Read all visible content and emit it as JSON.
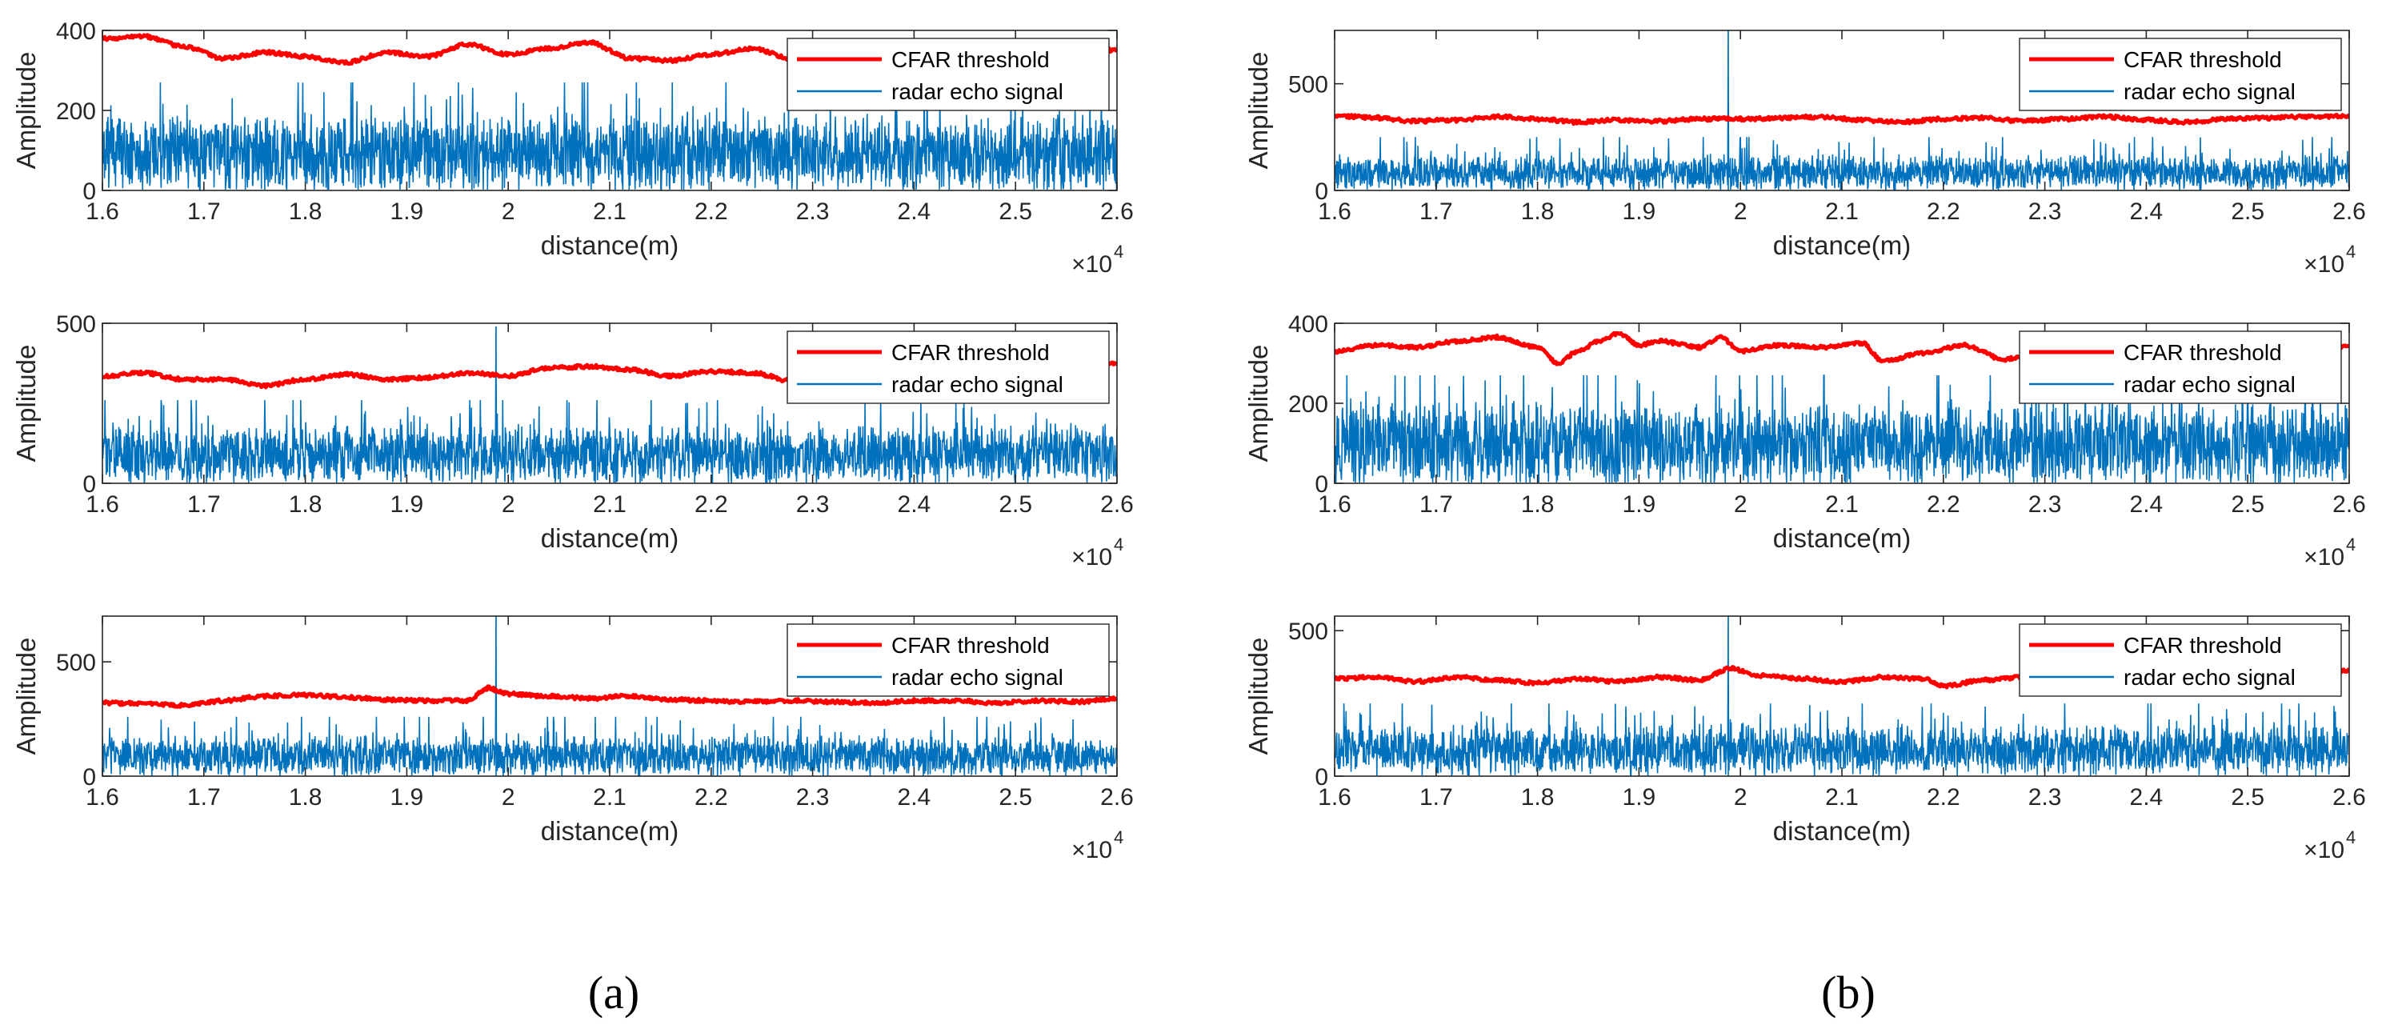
{
  "colors": {
    "threshold": "#ff0000",
    "signal": "#0072bd",
    "axis": "#262626",
    "frame": "#262626"
  },
  "panel_labels": [
    "(a)",
    "(b)"
  ],
  "chart_data": [
    {
      "id": "a1",
      "type": "line",
      "panel": "(a)",
      "row": 1,
      "xlim": [
        1.6,
        2.6
      ],
      "ylim": [
        0,
        400
      ],
      "yticks": [
        0,
        200,
        400
      ],
      "xticks": [
        "1.6",
        "1.7",
        "1.8",
        "1.9",
        "2",
        "2.1",
        "2.2",
        "2.3",
        "2.4",
        "2.5",
        "2.6"
      ],
      "xlabel": "distance(m)",
      "ylabel": "Amplitude",
      "x_exponent_base": "×10",
      "x_exponent": "4",
      "legend": [
        "CFAR threshold",
        "radar echo signal"
      ],
      "legend_loc": "top-right",
      "series": [
        {
          "name": "CFAR threshold",
          "anchors": [
            [
              1.6,
              380
            ],
            [
              1.64,
              385
            ],
            [
              1.68,
              360
            ],
            [
              1.72,
              330
            ],
            [
              1.76,
              345
            ],
            [
              1.8,
              335
            ],
            [
              1.84,
              320
            ],
            [
              1.88,
              345
            ],
            [
              1.92,
              335
            ],
            [
              1.96,
              365
            ],
            [
              2.0,
              340
            ],
            [
              2.04,
              355
            ],
            [
              2.08,
              370
            ],
            [
              2.12,
              330
            ],
            [
              2.16,
              325
            ],
            [
              2.2,
              340
            ],
            [
              2.24,
              355
            ],
            [
              2.28,
              330
            ],
            [
              2.32,
              345
            ],
            [
              2.36,
              360
            ],
            [
              2.4,
              350
            ],
            [
              2.44,
              365
            ],
            [
              2.48,
              355
            ],
            [
              2.52,
              370
            ],
            [
              2.56,
              360
            ],
            [
              2.6,
              350
            ]
          ]
        },
        {
          "name": "radar echo signal",
          "mean": 90,
          "spread": 95,
          "peak_max": 270,
          "spike_x": null,
          "spike_y": null
        }
      ]
    },
    {
      "id": "a2",
      "type": "line",
      "panel": "(a)",
      "row": 2,
      "xlim": [
        1.6,
        2.6
      ],
      "ylim": [
        0,
        500
      ],
      "yticks": [
        0,
        500
      ],
      "xticks": [
        "1.6",
        "1.7",
        "1.8",
        "1.9",
        "2",
        "2.1",
        "2.2",
        "2.3",
        "2.4",
        "2.5",
        "2.6"
      ],
      "xlabel": "distance(m)",
      "ylabel": "Amplitude",
      "x_exponent_base": "×10",
      "x_exponent": "4",
      "legend": [
        "CFAR threshold",
        "radar echo signal"
      ],
      "legend_loc": "top-right",
      "series": [
        {
          "name": "CFAR threshold",
          "anchors": [
            [
              1.6,
              335
            ],
            [
              1.64,
              345
            ],
            [
              1.68,
              325
            ],
            [
              1.72,
              325
            ],
            [
              1.76,
              305
            ],
            [
              1.8,
              325
            ],
            [
              1.84,
              340
            ],
            [
              1.88,
              325
            ],
            [
              1.92,
              330
            ],
            [
              1.96,
              345
            ],
            [
              2.0,
              335
            ],
            [
              2.04,
              360
            ],
            [
              2.08,
              365
            ],
            [
              2.12,
              355
            ],
            [
              2.16,
              335
            ],
            [
              2.2,
              350
            ],
            [
              2.24,
              345
            ],
            [
              2.28,
              320
            ],
            [
              2.32,
              335
            ],
            [
              2.36,
              345
            ],
            [
              2.4,
              330
            ],
            [
              2.44,
              345
            ],
            [
              2.48,
              335
            ],
            [
              2.52,
              330
            ],
            [
              2.56,
              345
            ],
            [
              2.6,
              375
            ]
          ]
        },
        {
          "name": "radar echo signal",
          "mean": 85,
          "spread": 90,
          "peak_max": 260,
          "spike_x": 1.988,
          "spike_y": 490
        }
      ]
    },
    {
      "id": "a3",
      "type": "line",
      "panel": "(a)",
      "row": 3,
      "xlim": [
        1.6,
        2.6
      ],
      "ylim": [
        0,
        700
      ],
      "yticks": [
        0,
        500
      ],
      "xticks": [
        "1.6",
        "1.7",
        "1.8",
        "1.9",
        "2",
        "2.1",
        "2.2",
        "2.3",
        "2.4",
        "2.5",
        "2.6"
      ],
      "xlabel": "distance(m)",
      "ylabel": "Amplitude",
      "x_exponent_base": "×10",
      "x_exponent": "4",
      "legend": [
        "CFAR threshold",
        "radar echo signal"
      ],
      "legend_loc": "top-right",
      "series": [
        {
          "name": "CFAR threshold",
          "anchors": [
            [
              1.6,
              320
            ],
            [
              1.64,
              318
            ],
            [
              1.68,
              310
            ],
            [
              1.72,
              330
            ],
            [
              1.76,
              350
            ],
            [
              1.8,
              355
            ],
            [
              1.84,
              345
            ],
            [
              1.88,
              335
            ],
            [
              1.92,
              330
            ],
            [
              1.96,
              330
            ],
            [
              1.98,
              385
            ],
            [
              2.0,
              360
            ],
            [
              2.04,
              350
            ],
            [
              2.08,
              340
            ],
            [
              2.12,
              350
            ],
            [
              2.16,
              335
            ],
            [
              2.2,
              330
            ],
            [
              2.24,
              325
            ],
            [
              2.28,
              330
            ],
            [
              2.32,
              325
            ],
            [
              2.36,
              320
            ],
            [
              2.4,
              330
            ],
            [
              2.44,
              330
            ],
            [
              2.48,
              320
            ],
            [
              2.52,
              330
            ],
            [
              2.56,
              325
            ],
            [
              2.6,
              340
            ]
          ]
        },
        {
          "name": "radar echo signal",
          "mean": 85,
          "spread": 85,
          "peak_max": 260,
          "spike_x": 1.988,
          "spike_y": 700
        }
      ]
    },
    {
      "id": "b1",
      "type": "line",
      "panel": "(b)",
      "row": 1,
      "xlim": [
        1.6,
        2.6
      ],
      "ylim": [
        0,
        750
      ],
      "yticks": [
        0,
        500
      ],
      "xticks": [
        "1.6",
        "1.7",
        "1.8",
        "1.9",
        "2",
        "2.1",
        "2.2",
        "2.3",
        "2.4",
        "2.5",
        "2.6"
      ],
      "xlabel": "distance(m)",
      "ylabel": "Amplitude",
      "x_exponent_base": "×10",
      "x_exponent": "4",
      "legend": [
        "CFAR threshold",
        "radar echo signal"
      ],
      "legend_loc": "top-right",
      "series": [
        {
          "name": "CFAR threshold",
          "anchors": [
            [
              1.6,
              350
            ],
            [
              1.64,
              340
            ],
            [
              1.68,
              325
            ],
            [
              1.72,
              330
            ],
            [
              1.76,
              345
            ],
            [
              1.8,
              335
            ],
            [
              1.84,
              320
            ],
            [
              1.88,
              330
            ],
            [
              1.92,
              325
            ],
            [
              1.96,
              335
            ],
            [
              2.0,
              335
            ],
            [
              2.04,
              340
            ],
            [
              2.08,
              345
            ],
            [
              2.12,
              330
            ],
            [
              2.16,
              320
            ],
            [
              2.2,
              335
            ],
            [
              2.24,
              340
            ],
            [
              2.28,
              325
            ],
            [
              2.32,
              335
            ],
            [
              2.36,
              345
            ],
            [
              2.4,
              330
            ],
            [
              2.44,
              320
            ],
            [
              2.48,
              335
            ],
            [
              2.52,
              340
            ],
            [
              2.56,
              345
            ],
            [
              2.6,
              350
            ]
          ]
        },
        {
          "name": "radar echo signal",
          "mean": 80,
          "spread": 80,
          "peak_max": 250,
          "spike_x": 1.988,
          "spike_y": 750
        }
      ]
    },
    {
      "id": "b2",
      "type": "line",
      "panel": "(b)",
      "row": 2,
      "xlim": [
        1.6,
        2.6
      ],
      "ylim": [
        0,
        400
      ],
      "yticks": [
        0,
        200,
        400
      ],
      "xticks": [
        "1.6",
        "1.7",
        "1.8",
        "1.9",
        "2",
        "2.1",
        "2.2",
        "2.3",
        "2.4",
        "2.5",
        "2.6"
      ],
      "xlabel": "distance(m)",
      "ylabel": "Amplitude",
      "x_exponent_base": "×10",
      "x_exponent": "4",
      "legend": [
        "CFAR threshold",
        "radar echo signal"
      ],
      "legend_loc": "top-right",
      "series": [
        {
          "name": "CFAR threshold",
          "anchors": [
            [
              1.6,
              330
            ],
            [
              1.64,
              345
            ],
            [
              1.68,
              340
            ],
            [
              1.72,
              355
            ],
            [
              1.76,
              365
            ],
            [
              1.8,
              340
            ],
            [
              1.82,
              300
            ],
            [
              1.84,
              330
            ],
            [
              1.86,
              355
            ],
            [
              1.88,
              375
            ],
            [
              1.9,
              345
            ],
            [
              1.92,
              355
            ],
            [
              1.96,
              340
            ],
            [
              1.98,
              365
            ],
            [
              2.0,
              330
            ],
            [
              2.04,
              345
            ],
            [
              2.08,
              340
            ],
            [
              2.12,
              350
            ],
            [
              2.14,
              305
            ],
            [
              2.18,
              325
            ],
            [
              2.22,
              345
            ],
            [
              2.26,
              310
            ],
            [
              2.3,
              330
            ],
            [
              2.34,
              345
            ],
            [
              2.38,
              320
            ],
            [
              2.42,
              330
            ],
            [
              2.46,
              345
            ],
            [
              2.5,
              325
            ],
            [
              2.54,
              310
            ],
            [
              2.58,
              330
            ],
            [
              2.6,
              345
            ]
          ]
        },
        {
          "name": "radar echo signal",
          "mean": 95,
          "spread": 100,
          "peak_max": 270,
          "spike_x": null,
          "spike_y": null
        }
      ]
    },
    {
      "id": "b3",
      "type": "line",
      "panel": "(b)",
      "row": 3,
      "xlim": [
        1.6,
        2.6
      ],
      "ylim": [
        0,
        550
      ],
      "yticks": [
        0,
        500
      ],
      "xticks": [
        "1.6",
        "1.7",
        "1.8",
        "1.9",
        "2",
        "2.1",
        "2.2",
        "2.3",
        "2.4",
        "2.5",
        "2.6"
      ],
      "xlabel": "distance(m)",
      "ylabel": "Amplitude",
      "x_exponent_base": "×10",
      "x_exponent": "4",
      "legend": [
        "CFAR threshold",
        "radar echo signal"
      ],
      "legend_loc": "top-right",
      "series": [
        {
          "name": "CFAR threshold",
          "anchors": [
            [
              1.6,
              335
            ],
            [
              1.64,
              340
            ],
            [
              1.68,
              325
            ],
            [
              1.72,
              340
            ],
            [
              1.76,
              330
            ],
            [
              1.8,
              320
            ],
            [
              1.84,
              335
            ],
            [
              1.88,
              325
            ],
            [
              1.92,
              340
            ],
            [
              1.96,
              330
            ],
            [
              1.99,
              370
            ],
            [
              2.02,
              345
            ],
            [
              2.06,
              335
            ],
            [
              2.1,
              325
            ],
            [
              2.14,
              340
            ],
            [
              2.18,
              335
            ],
            [
              2.2,
              310
            ],
            [
              2.24,
              330
            ],
            [
              2.28,
              340
            ],
            [
              2.32,
              330
            ],
            [
              2.36,
              335
            ],
            [
              2.4,
              325
            ],
            [
              2.44,
              330
            ],
            [
              2.48,
              320
            ],
            [
              2.52,
              335
            ],
            [
              2.56,
              340
            ],
            [
              2.6,
              365
            ]
          ]
        },
        {
          "name": "radar echo signal",
          "mean": 85,
          "spread": 85,
          "peak_max": 250,
          "spike_x": 1.988,
          "spike_y": 550
        }
      ]
    }
  ]
}
